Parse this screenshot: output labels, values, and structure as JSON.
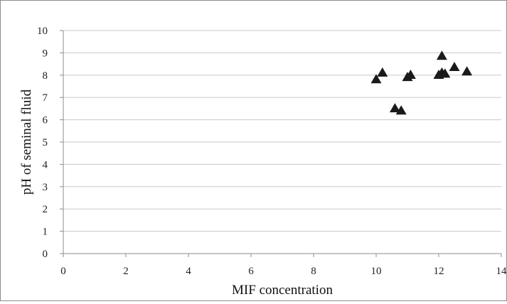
{
  "chart_data": {
    "type": "scatter",
    "title": "",
    "xlabel": "MIF concentration",
    "ylabel": "pH of seminal fluid",
    "xlim": [
      0,
      14
    ],
    "ylim": [
      0,
      10
    ],
    "xticks": [
      0,
      2,
      4,
      6,
      8,
      10,
      12,
      14
    ],
    "yticks": [
      0,
      1,
      2,
      3,
      4,
      5,
      6,
      7,
      8,
      9,
      10
    ],
    "x_tick_labels": [
      "0",
      "2",
      "4",
      "6",
      "8",
      "10",
      "12",
      "14"
    ],
    "y_tick_labels": [
      "0",
      "1",
      "2",
      "3",
      "4",
      "5",
      "6",
      "7",
      "8",
      "9",
      "10"
    ],
    "grid": "horizontal",
    "legend": "none",
    "marker": "triangle",
    "marker_color": "#1a1a1a",
    "gridline_color": "#c8c8c8",
    "axis_color": "#8c8c8c",
    "series": [
      {
        "x": [
          10.0,
          10.2,
          11.0,
          11.1,
          10.6,
          10.8,
          12.0,
          12.1,
          12.1,
          12.2,
          12.5,
          12.9
        ],
        "y": [
          7.8,
          8.1,
          7.9,
          8.0,
          6.5,
          6.4,
          8.0,
          8.85,
          8.1,
          8.05,
          8.35,
          8.15
        ]
      }
    ]
  }
}
